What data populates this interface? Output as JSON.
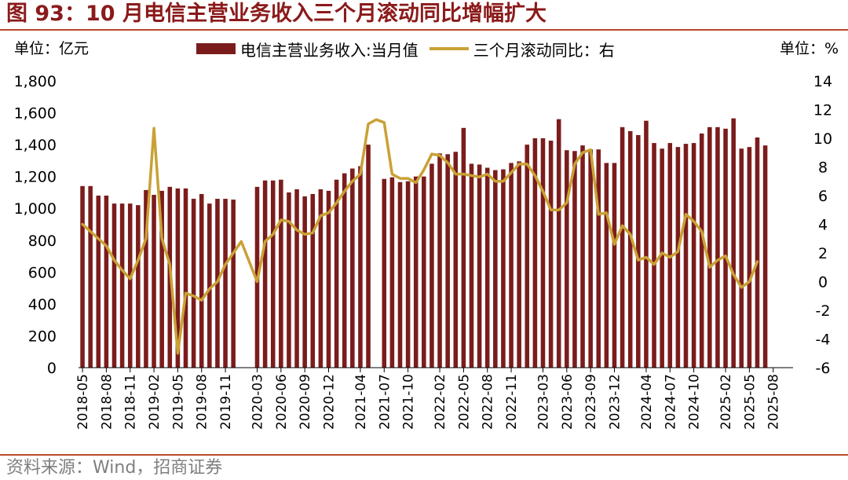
{
  "title": "图 93：10 月电信主营业务收入三个月滚动同比增幅扩大",
  "source": "资料来源：Wind，招商证券",
  "colors": {
    "bar": "#7b1c1c",
    "line": "#c9a135",
    "accent": "#8b1a1a",
    "rule": "#b64a2c"
  },
  "chart_data": {
    "type": "bar+line",
    "unit_left": "单位：亿元",
    "unit_right": "单位：%",
    "legend": [
      {
        "label": "电信主营业务收入:当月值",
        "type": "bar"
      },
      {
        "label": "三个月滚动同比：右",
        "type": "line"
      }
    ],
    "y_left": {
      "min": 0,
      "max": 1800,
      "step": 200,
      "ticks": [
        "0",
        "200",
        "400",
        "600",
        "800",
        "1,000",
        "1,200",
        "1,400",
        "1,600",
        "1,800"
      ]
    },
    "y_right": {
      "min": -6,
      "max": 14,
      "step": 2,
      "ticks": [
        "-6",
        "-4",
        "-2",
        "0",
        "2",
        "4",
        "6",
        "8",
        "10",
        "12",
        "14"
      ]
    },
    "x_tick_labels": [
      "2018-05",
      "2018-08",
      "2018-11",
      "2019-02",
      "2019-05",
      "2019-08",
      "2019-11",
      "2020-03",
      "2020-06",
      "2020-09",
      "2020-12",
      "2021-04",
      "2021-07",
      "2021-10",
      "2022-02",
      "2022-05",
      "2022-08",
      "2022-11",
      "2023-03",
      "2023-06",
      "2023-09",
      "2023-12",
      "2024-04",
      "2024-07",
      "2024-10",
      "2025-02",
      "2025-05",
      "2025-08"
    ],
    "series": [
      {
        "name": "电信主营业务收入:当月值",
        "axis": "left",
        "points": [
          [
            "2018-05",
            1140
          ],
          [
            "2018-06",
            1140
          ],
          [
            "2018-07",
            1080
          ],
          [
            "2018-08",
            1080
          ],
          [
            "2018-09",
            1030
          ],
          [
            "2018-10",
            1030
          ],
          [
            "2018-11",
            1030
          ],
          [
            "2018-12",
            1020
          ],
          [
            "2019-01",
            1115
          ],
          [
            "2019-02",
            1085
          ],
          [
            "2019-03",
            1110
          ],
          [
            "2019-04",
            1135
          ],
          [
            "2019-05",
            1125
          ],
          [
            "2019-06",
            1125
          ],
          [
            "2019-07",
            1060
          ],
          [
            "2019-08",
            1090
          ],
          [
            "2019-09",
            1030
          ],
          [
            "2019-10",
            1060
          ],
          [
            "2019-11",
            1060
          ],
          [
            "2019-12",
            1055
          ],
          [
            "2020-03",
            1135
          ],
          [
            "2020-04",
            1175
          ],
          [
            "2020-05",
            1175
          ],
          [
            "2020-06",
            1180
          ],
          [
            "2020-07",
            1100
          ],
          [
            "2020-08",
            1120
          ],
          [
            "2020-09",
            1075
          ],
          [
            "2020-10",
            1090
          ],
          [
            "2020-11",
            1120
          ],
          [
            "2020-12",
            1110
          ],
          [
            "2021-01",
            1180
          ],
          [
            "2021-02",
            1220
          ],
          [
            "2021-03",
            1250
          ],
          [
            "2021-04",
            1265
          ],
          [
            "2021-05",
            1400
          ],
          [
            "2021-07",
            1185
          ],
          [
            "2021-08",
            1195
          ],
          [
            "2021-09",
            1165
          ],
          [
            "2021-10",
            1170
          ],
          [
            "2021-11",
            1200
          ],
          [
            "2021-12",
            1200
          ],
          [
            "2022-01",
            1280
          ],
          [
            "2022-02",
            1345
          ],
          [
            "2022-03",
            1340
          ],
          [
            "2022-04",
            1355
          ],
          [
            "2022-05",
            1505
          ],
          [
            "2022-06",
            1280
          ],
          [
            "2022-07",
            1275
          ],
          [
            "2022-08",
            1255
          ],
          [
            "2022-09",
            1240
          ],
          [
            "2022-10",
            1245
          ],
          [
            "2022-11",
            1285
          ],
          [
            "2022-12",
            1295
          ],
          [
            "2023-01",
            1400
          ],
          [
            "2023-02",
            1440
          ],
          [
            "2023-03",
            1440
          ],
          [
            "2023-04",
            1425
          ],
          [
            "2023-05",
            1560
          ],
          [
            "2023-06",
            1365
          ],
          [
            "2023-07",
            1360
          ],
          [
            "2023-08",
            1395
          ],
          [
            "2023-09",
            1370
          ],
          [
            "2023-10",
            1370
          ],
          [
            "2023-11",
            1285
          ],
          [
            "2023-12",
            1285
          ],
          [
            "2024-01",
            1510
          ],
          [
            "2024-02",
            1485
          ],
          [
            "2024-03",
            1460
          ],
          [
            "2024-04",
            1550
          ],
          [
            "2024-05",
            1410
          ],
          [
            "2024-06",
            1375
          ],
          [
            "2024-07",
            1410
          ],
          [
            "2024-08",
            1385
          ],
          [
            "2024-09",
            1405
          ],
          [
            "2024-10",
            1410
          ],
          [
            "2024-11",
            1470
          ],
          [
            "2024-12",
            1510
          ],
          [
            "2025-01",
            1510
          ],
          [
            "2025-02",
            1500
          ],
          [
            "2025-03",
            1565
          ],
          [
            "2025-04",
            1375
          ],
          [
            "2025-05",
            1385
          ],
          [
            "2025-06",
            1445
          ],
          [
            "2025-07",
            1395
          ]
        ]
      },
      {
        "name": "三个月滚动同比：右",
        "axis": "right",
        "points": [
          [
            "2018-05",
            4.0
          ],
          [
            "2018-06",
            3.5
          ],
          [
            "2018-07",
            3.0
          ],
          [
            "2018-08",
            2.5
          ],
          [
            "2018-09",
            1.5
          ],
          [
            "2018-10",
            0.8
          ],
          [
            "2018-11",
            0.2
          ],
          [
            "2018-12",
            1.5
          ],
          [
            "2019-01",
            3.0
          ],
          [
            "2019-02",
            10.7
          ],
          [
            "2019-03",
            3.0
          ],
          [
            "2019-04",
            1.2
          ],
          [
            "2019-05",
            -5.0
          ],
          [
            "2019-06",
            -0.8
          ],
          [
            "2019-07",
            -1.0
          ],
          [
            "2019-08",
            -1.3
          ],
          [
            "2019-09",
            -0.5
          ],
          [
            "2019-10",
            0.0
          ],
          [
            "2019-11",
            1.2
          ],
          [
            "2019-12",
            2.0
          ],
          [
            "2020-01",
            2.8
          ],
          [
            "2020-03",
            0.0
          ],
          [
            "2020-04",
            2.8
          ],
          [
            "2020-05",
            3.3
          ],
          [
            "2020-06",
            4.3
          ],
          [
            "2020-07",
            4.2
          ],
          [
            "2020-08",
            3.6
          ],
          [
            "2020-09",
            3.3
          ],
          [
            "2020-10",
            3.4
          ],
          [
            "2020-11",
            4.6
          ],
          [
            "2020-12",
            4.8
          ],
          [
            "2021-01",
            5.5
          ],
          [
            "2021-02",
            6.3
          ],
          [
            "2021-03",
            7.0
          ],
          [
            "2021-04",
            7.5
          ],
          [
            "2021-05",
            11.0
          ],
          [
            "2021-06",
            11.3
          ],
          [
            "2021-07",
            11.1
          ],
          [
            "2021-08",
            7.5
          ],
          [
            "2021-09",
            7.2
          ],
          [
            "2021-10",
            7.2
          ],
          [
            "2021-11",
            6.9
          ],
          [
            "2021-12",
            7.8
          ],
          [
            "2022-01",
            8.9
          ],
          [
            "2022-02",
            8.8
          ],
          [
            "2022-03",
            8.3
          ],
          [
            "2022-04",
            7.5
          ],
          [
            "2022-05",
            7.5
          ],
          [
            "2022-06",
            7.4
          ],
          [
            "2022-07",
            7.3
          ],
          [
            "2022-08",
            7.5
          ],
          [
            "2022-09",
            7.0
          ],
          [
            "2022-10",
            7.0
          ],
          [
            "2022-11",
            7.6
          ],
          [
            "2022-12",
            8.2
          ],
          [
            "2023-01",
            8.2
          ],
          [
            "2023-02",
            7.4
          ],
          [
            "2023-03",
            6.3
          ],
          [
            "2023-04",
            5.0
          ],
          [
            "2023-05",
            5.0
          ],
          [
            "2023-06",
            5.5
          ],
          [
            "2023-07",
            8.2
          ],
          [
            "2023-08",
            9.0
          ],
          [
            "2023-09",
            9.2
          ],
          [
            "2023-10",
            4.7
          ],
          [
            "2023-11",
            4.8
          ],
          [
            "2023-12",
            2.6
          ],
          [
            "2024-01",
            3.9
          ],
          [
            "2024-02",
            3.3
          ],
          [
            "2024-03",
            1.5
          ],
          [
            "2024-04",
            1.7
          ],
          [
            "2024-05",
            1.2
          ],
          [
            "2024-06",
            2.0
          ],
          [
            "2024-07",
            1.7
          ],
          [
            "2024-08",
            2.1
          ],
          [
            "2024-09",
            4.7
          ],
          [
            "2024-10",
            4.2
          ],
          [
            "2024-11",
            3.5
          ],
          [
            "2024-12",
            1.0
          ],
          [
            "2025-01",
            1.5
          ],
          [
            "2025-02",
            1.8
          ],
          [
            "2025-03",
            0.5
          ],
          [
            "2025-04",
            -0.4
          ],
          [
            "2025-05",
            0.0
          ],
          [
            "2025-06",
            1.4
          ]
        ]
      }
    ]
  }
}
